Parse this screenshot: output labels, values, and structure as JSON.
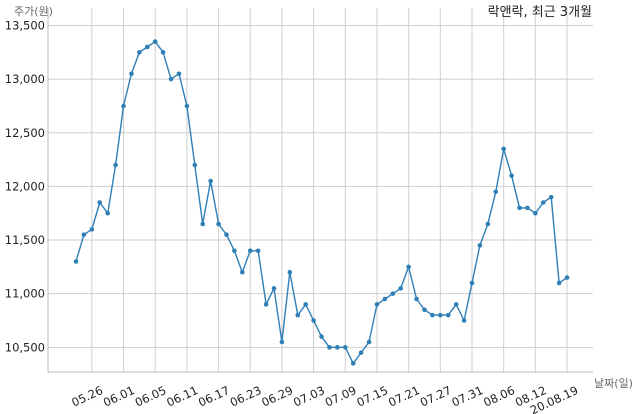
{
  "chart_data": {
    "type": "line",
    "title": "락앤락, 최근 3개월",
    "ylabel": "주가(원)",
    "xlabel": "날짜(일)",
    "ylim": [
      10200,
      13500
    ],
    "yticks": [
      10500,
      11000,
      11500,
      12000,
      12500,
      13000,
      13500
    ],
    "ytick_labels": [
      "10,500",
      "11,000",
      "11,500",
      "12,000",
      "12,500",
      "13,000",
      "13,500"
    ],
    "xtick_labels": [
      "05.26",
      "06.01",
      "06.05",
      "06.11",
      "06.17",
      "06.23",
      "06.29",
      "07.03",
      "07.09",
      "07.15",
      "07.21",
      "07.27",
      "07.31",
      "08.06",
      "08.12",
      "20.08.19"
    ],
    "xtick_index": [
      2,
      6,
      10,
      14,
      18,
      22,
      26,
      30,
      34,
      38,
      42,
      46,
      50,
      54,
      58,
      62
    ],
    "grid": true,
    "line_color": "#2f7fb7",
    "series": [
      {
        "values": [
          11300,
          11550,
          11600,
          11850,
          11750,
          12200,
          12750,
          13050,
          13250,
          13300,
          13350,
          13250,
          13000,
          13050,
          12750,
          12200,
          11650,
          12050,
          11650,
          11550,
          11400,
          11200,
          11400,
          11400,
          10900,
          11050,
          10550,
          11200,
          10800,
          10900,
          10750,
          10600,
          10500,
          10500,
          10500,
          10350,
          10450,
          10550,
          10900,
          10950,
          11000,
          11050,
          11250,
          10950,
          10850,
          10800,
          10800,
          10800,
          10900,
          10750,
          11100,
          11450,
          11650,
          11950,
          12350,
          12100,
          11800,
          11800,
          11750,
          11850,
          11900,
          11100,
          11150
        ]
      }
    ]
  }
}
